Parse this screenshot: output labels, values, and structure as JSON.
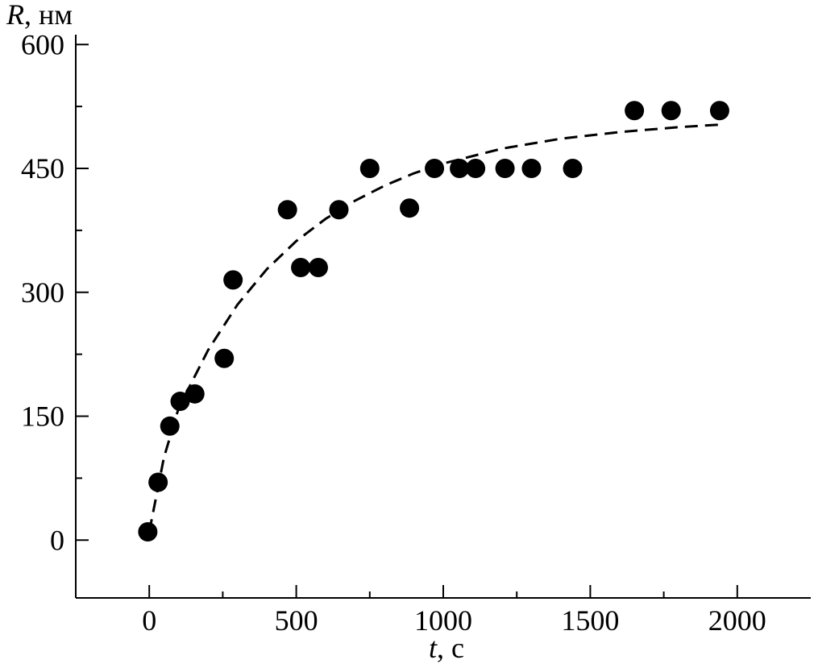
{
  "chart_data": {
    "type": "scatter",
    "ylabel_var": "R",
    "ylabel_unit": ", нм",
    "xlabel_var": "t",
    "xlabel_unit": ", с",
    "xlim": [
      -250,
      2250
    ],
    "ylim": [
      -70,
      610
    ],
    "xticks": [
      0,
      500,
      1000,
      1500,
      2000
    ],
    "yticks": [
      0,
      150,
      300,
      450,
      600
    ],
    "xtick_labels": [
      "0",
      "500",
      "1000",
      "1500",
      "2000"
    ],
    "ytick_labels": [
      "0",
      "150",
      "300",
      "450",
      "600"
    ],
    "grid": false,
    "points": [
      {
        "x": -5,
        "y": 10
      },
      {
        "x": 30,
        "y": 70
      },
      {
        "x": 70,
        "y": 138
      },
      {
        "x": 105,
        "y": 168
      },
      {
        "x": 155,
        "y": 177
      },
      {
        "x": 255,
        "y": 220
      },
      {
        "x": 285,
        "y": 315
      },
      {
        "x": 470,
        "y": 400
      },
      {
        "x": 515,
        "y": 330
      },
      {
        "x": 575,
        "y": 330
      },
      {
        "x": 645,
        "y": 400
      },
      {
        "x": 750,
        "y": 450
      },
      {
        "x": 885,
        "y": 402
      },
      {
        "x": 970,
        "y": 450
      },
      {
        "x": 1055,
        "y": 450
      },
      {
        "x": 1110,
        "y": 450
      },
      {
        "x": 1210,
        "y": 450
      },
      {
        "x": 1300,
        "y": 450
      },
      {
        "x": 1440,
        "y": 450
      },
      {
        "x": 1650,
        "y": 520
      },
      {
        "x": 1775,
        "y": 520
      },
      {
        "x": 1940,
        "y": 520
      }
    ],
    "fit_curve": {
      "style": "dashed",
      "points": [
        [
          0,
          10
        ],
        [
          50,
          100
        ],
        [
          100,
          160
        ],
        [
          200,
          230
        ],
        [
          300,
          285
        ],
        [
          400,
          328
        ],
        [
          500,
          362
        ],
        [
          600,
          389
        ],
        [
          700,
          411
        ],
        [
          800,
          429
        ],
        [
          900,
          444
        ],
        [
          1000,
          456
        ],
        [
          1200,
          474
        ],
        [
          1400,
          486
        ],
        [
          1600,
          494
        ],
        [
          1800,
          500
        ],
        [
          1940,
          503
        ]
      ]
    }
  }
}
